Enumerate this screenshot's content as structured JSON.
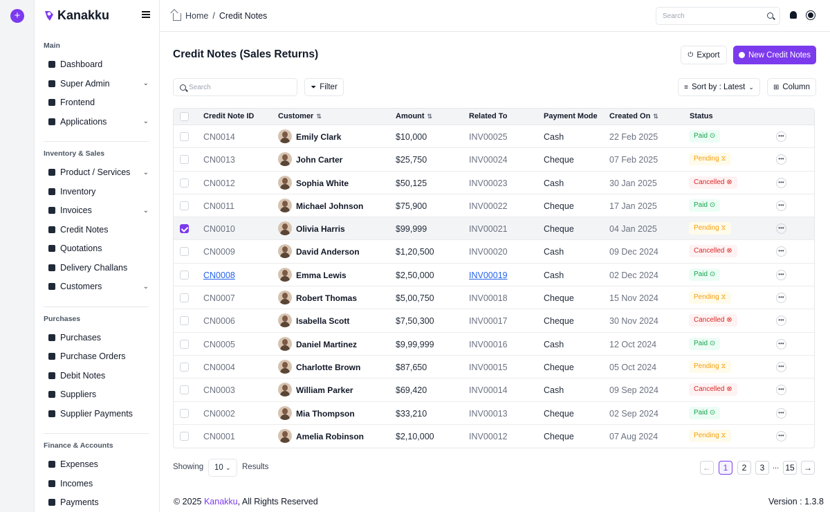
{
  "app": {
    "name": "Kanakku"
  },
  "sidebar": {
    "sections": [
      {
        "title": "Main",
        "items": [
          {
            "label": "Dashboard",
            "icon": "dashboard-icon",
            "chevron": false
          },
          {
            "label": "Super Admin",
            "icon": "user-shield-icon",
            "chevron": true
          },
          {
            "label": "Frontend",
            "icon": "frontend-icon",
            "chevron": false
          },
          {
            "label": "Applications",
            "icon": "grid-icon",
            "chevron": true
          }
        ]
      },
      {
        "title": "Inventory & Sales",
        "items": [
          {
            "label": "Product / Services",
            "icon": "box-icon",
            "chevron": true
          },
          {
            "label": "Inventory",
            "icon": "inventory-icon",
            "chevron": false
          },
          {
            "label": "Invoices",
            "icon": "invoice-icon",
            "chevron": true
          },
          {
            "label": "Credit Notes",
            "icon": "credit-note-icon",
            "chevron": false
          },
          {
            "label": "Quotations",
            "icon": "quotation-icon",
            "chevron": false
          },
          {
            "label": "Delivery Challans",
            "icon": "truck-icon",
            "chevron": false
          },
          {
            "label": "Customers",
            "icon": "customers-icon",
            "chevron": true
          }
        ]
      },
      {
        "title": "Purchases",
        "items": [
          {
            "label": "Purchases",
            "icon": "bag-icon",
            "chevron": false
          },
          {
            "label": "Purchase Orders",
            "icon": "purchase-order-icon",
            "chevron": false
          },
          {
            "label": "Debit Notes",
            "icon": "debit-note-icon",
            "chevron": false
          },
          {
            "label": "Suppliers",
            "icon": "supplier-icon",
            "chevron": false
          },
          {
            "label": "Supplier Payments",
            "icon": "payment-icon",
            "chevron": false
          }
        ]
      },
      {
        "title": "Finance & Accounts",
        "items": [
          {
            "label": "Expenses",
            "icon": "expenses-icon",
            "chevron": false
          },
          {
            "label": "Incomes",
            "icon": "incomes-icon",
            "chevron": false
          },
          {
            "label": "Payments",
            "icon": "payments-icon",
            "chevron": false
          }
        ]
      }
    ]
  },
  "header": {
    "breadcrumb_home": "Home",
    "breadcrumb_sep": "/",
    "breadcrumb_current": "Credit Notes",
    "search_placeholder": "Search"
  },
  "page": {
    "title": "Credit Notes (Sales Returns)",
    "export_label": "Export",
    "new_label": "New Credit Notes",
    "search_placeholder": "Search",
    "filter_label": "Filter",
    "sort_label": "Sort by : Latest",
    "column_label": "Column"
  },
  "table": {
    "columns": [
      "Credit Note ID",
      "Customer",
      "Amount",
      "Related To",
      "Payment Mode",
      "Created On",
      "Status"
    ],
    "rows": [
      {
        "id": "CN0014",
        "customer": "Emily Clark",
        "amount": "$10,000",
        "related": "INV00025",
        "mode": "Cash",
        "date": "22 Feb 2025",
        "status": "Paid",
        "checked": false,
        "linked": false
      },
      {
        "id": "CN0013",
        "customer": "John Carter",
        "amount": "$25,750",
        "related": "INV00024",
        "mode": "Cheque",
        "date": "07 Feb 2025",
        "status": "Pending",
        "checked": false,
        "linked": false
      },
      {
        "id": "CN0012",
        "customer": "Sophia White",
        "amount": "$50,125",
        "related": "INV00023",
        "mode": "Cash",
        "date": "30 Jan 2025",
        "status": "Cancelled",
        "checked": false,
        "linked": false
      },
      {
        "id": "CN0011",
        "customer": "Michael Johnson",
        "amount": "$75,900",
        "related": "INV00022",
        "mode": "Cheque",
        "date": "17 Jan 2025",
        "status": "Paid",
        "checked": false,
        "linked": false
      },
      {
        "id": "CN0010",
        "customer": "Olivia Harris",
        "amount": "$99,999",
        "related": "INV00021",
        "mode": "Cheque",
        "date": "04 Jan 2025",
        "status": "Pending",
        "checked": true,
        "linked": false
      },
      {
        "id": "CN0009",
        "customer": "David Anderson",
        "amount": "$1,20,500",
        "related": "INV00020",
        "mode": "Cash",
        "date": "09 Dec 2024",
        "status": "Cancelled",
        "checked": false,
        "linked": false
      },
      {
        "id": "CN0008",
        "customer": "Emma Lewis",
        "amount": "$2,50,000",
        "related": "INV00019",
        "mode": "Cash",
        "date": "02 Dec 2024",
        "status": "Paid",
        "checked": false,
        "linked": true
      },
      {
        "id": "CN0007",
        "customer": "Robert Thomas",
        "amount": "$5,00,750",
        "related": "INV00018",
        "mode": "Cheque",
        "date": "15 Nov 2024",
        "status": "Pending",
        "checked": false,
        "linked": false
      },
      {
        "id": "CN0006",
        "customer": "Isabella Scott",
        "amount": "$7,50,300",
        "related": "INV00017",
        "mode": "Cheque",
        "date": "30 Nov 2024",
        "status": "Cancelled",
        "checked": false,
        "linked": false
      },
      {
        "id": "CN0005",
        "customer": "Daniel Martinez",
        "amount": "$9,99,999",
        "related": "INV00016",
        "mode": "Cash",
        "date": "12 Oct 2024",
        "status": "Paid",
        "checked": false,
        "linked": false
      },
      {
        "id": "CN0004",
        "customer": "Charlotte Brown",
        "amount": "$87,650",
        "related": "INV00015",
        "mode": "Cheque",
        "date": "05 Oct 2024",
        "status": "Pending",
        "checked": false,
        "linked": false
      },
      {
        "id": "CN0003",
        "customer": "William Parker",
        "amount": "$69,420",
        "related": "INV00014",
        "mode": "Cash",
        "date": "09 Sep 2024",
        "status": "Cancelled",
        "checked": false,
        "linked": false
      },
      {
        "id": "CN0002",
        "customer": "Mia Thompson",
        "amount": "$33,210",
        "related": "INV00013",
        "mode": "Cheque",
        "date": "02 Sep 2024",
        "status": "Paid",
        "checked": false,
        "linked": false
      },
      {
        "id": "CN0001",
        "customer": "Amelia Robinson",
        "amount": "$2,10,000",
        "related": "INV00012",
        "mode": "Cheque",
        "date": "07 Aug 2024",
        "status": "Pending",
        "checked": false,
        "linked": false
      }
    ]
  },
  "footer": {
    "showing": "Showing",
    "per_page": "10",
    "results": "Results",
    "pages": [
      "1",
      "2",
      "3",
      "...",
      "15"
    ],
    "current_page": "1",
    "copyright_prefix": "© 2025 ",
    "copyright_brand": "Kanakku",
    "copyright_suffix": ", All Rights Reserved",
    "version": "Version : 1.3.8"
  },
  "colors": {
    "accent": "#7c3aed",
    "paid": "#16a34a",
    "pending": "#f59e0b",
    "cancelled": "#dc2626"
  }
}
